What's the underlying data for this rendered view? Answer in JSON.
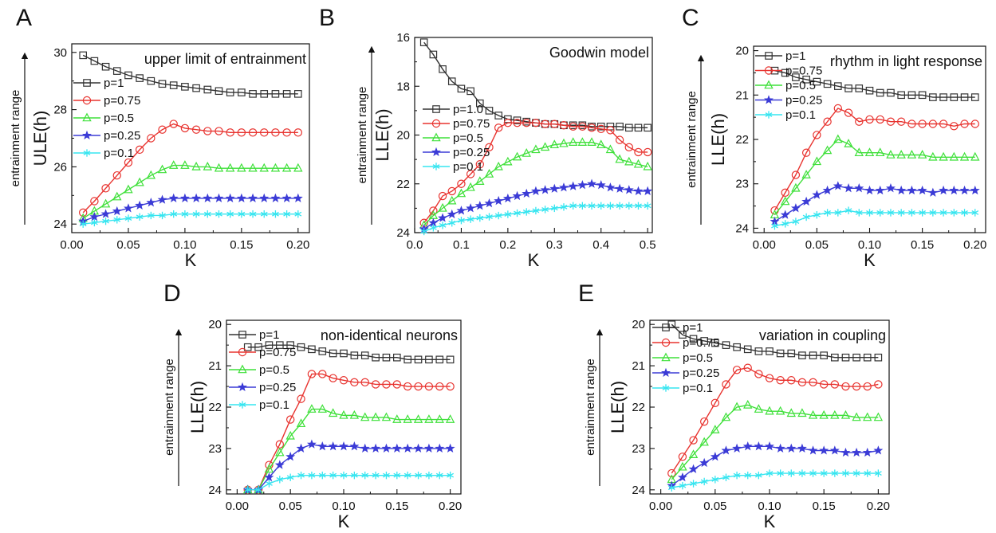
{
  "side_label": "entrainment range",
  "chart_data": [
    {
      "panel": "A",
      "type": "line",
      "title": "upper limit of entrainment",
      "xlabel": "K",
      "ylabel": "ULE(h)",
      "xlim": [
        0,
        0.21
      ],
      "ylim": [
        23.7,
        30.3
      ],
      "y_reversed": false,
      "xticks": [
        0.0,
        0.05,
        0.1,
        0.15,
        0.2
      ],
      "xtick_labels": [
        "0.00",
        "0.05",
        "0.10",
        "0.15",
        "0.20"
      ],
      "yticks": [
        24,
        26,
        28,
        30
      ],
      "ytick_labels": [
        "24",
        "26",
        "28",
        "30"
      ],
      "grid": false,
      "legend": "left",
      "x": [
        0.01,
        0.02,
        0.03,
        0.04,
        0.05,
        0.06,
        0.07,
        0.08,
        0.09,
        0.1,
        0.11,
        0.12,
        0.13,
        0.14,
        0.15,
        0.16,
        0.17,
        0.18,
        0.19,
        0.2
      ],
      "series": [
        {
          "name": "p=1",
          "color": "#333333",
          "marker": "square",
          "values": [
            29.9,
            29.7,
            29.5,
            29.35,
            29.2,
            29.1,
            29.0,
            28.9,
            28.85,
            28.8,
            28.75,
            28.7,
            28.65,
            28.6,
            28.6,
            28.55,
            28.55,
            28.55,
            28.55,
            28.55
          ]
        },
        {
          "name": "p=0.75",
          "color": "#e8332f",
          "marker": "circle",
          "values": [
            24.4,
            24.8,
            25.25,
            25.7,
            26.15,
            26.6,
            27.0,
            27.3,
            27.5,
            27.35,
            27.3,
            27.25,
            27.25,
            27.2,
            27.2,
            27.2,
            27.2,
            27.2,
            27.2,
            27.2
          ]
        },
        {
          "name": "p=0.5",
          "color": "#3fe03a",
          "marker": "triangle",
          "values": [
            24.2,
            24.45,
            24.7,
            24.95,
            25.2,
            25.45,
            25.7,
            25.9,
            26.05,
            26.05,
            26.0,
            26.0,
            25.95,
            25.95,
            25.95,
            25.95,
            25.95,
            25.95,
            25.95,
            25.95
          ]
        },
        {
          "name": "p=0.25",
          "color": "#3b3bd6",
          "marker": "star",
          "values": [
            24.1,
            24.25,
            24.35,
            24.45,
            24.55,
            24.65,
            24.75,
            24.85,
            24.9,
            24.9,
            24.9,
            24.9,
            24.9,
            24.9,
            24.9,
            24.9,
            24.9,
            24.9,
            24.9,
            24.9
          ]
        },
        {
          "name": "p=0.1",
          "color": "#36e5f0",
          "marker": "asterisk",
          "values": [
            24.0,
            24.05,
            24.1,
            24.15,
            24.2,
            24.25,
            24.3,
            24.3,
            24.35,
            24.35,
            24.35,
            24.35,
            24.35,
            24.35,
            24.35,
            24.35,
            24.35,
            24.35,
            24.35,
            24.35
          ]
        }
      ]
    },
    {
      "panel": "B",
      "type": "line",
      "title": "Goodwin model",
      "xlabel": "K",
      "ylabel": "LLE(h)",
      "xlim": [
        0,
        0.51
      ],
      "ylim": [
        24,
        16
      ],
      "y_reversed": true,
      "xticks": [
        0.0,
        0.1,
        0.2,
        0.3,
        0.4,
        0.5
      ],
      "xtick_labels": [
        "0.0",
        "0.1",
        "0.2",
        "0.3",
        "0.4",
        "0.5"
      ],
      "yticks": [
        16,
        18,
        20,
        22,
        24
      ],
      "ytick_labels": [
        "16",
        "18",
        "20",
        "22",
        "24"
      ],
      "grid": false,
      "legend": "left",
      "x": [
        0.02,
        0.04,
        0.06,
        0.08,
        0.1,
        0.12,
        0.14,
        0.16,
        0.18,
        0.2,
        0.22,
        0.24,
        0.26,
        0.28,
        0.3,
        0.32,
        0.34,
        0.36,
        0.38,
        0.4,
        0.42,
        0.44,
        0.46,
        0.48,
        0.5
      ],
      "series": [
        {
          "name": "p=1.0",
          "color": "#333333",
          "marker": "square",
          "values": [
            16.2,
            16.7,
            17.3,
            17.8,
            18.1,
            18.2,
            18.7,
            19.0,
            19.2,
            19.35,
            19.4,
            19.45,
            19.5,
            19.55,
            19.55,
            19.6,
            19.6,
            19.6,
            19.65,
            19.65,
            19.65,
            19.65,
            19.7,
            19.7,
            19.7
          ]
        },
        {
          "name": "p=0.75",
          "color": "#e8332f",
          "marker": "circle",
          "values": [
            23.6,
            23.1,
            22.5,
            22.3,
            22.0,
            21.6,
            21.2,
            20.5,
            19.7,
            19.5,
            19.5,
            19.5,
            19.5,
            19.55,
            19.55,
            19.6,
            19.65,
            19.65,
            19.7,
            19.75,
            19.8,
            20.2,
            20.5,
            20.7,
            20.7
          ]
        },
        {
          "name": "p=0.5",
          "color": "#3fe03a",
          "marker": "triangle",
          "values": [
            23.7,
            23.3,
            23.0,
            22.7,
            22.4,
            22.15,
            21.9,
            21.6,
            21.3,
            21.1,
            20.9,
            20.75,
            20.6,
            20.5,
            20.4,
            20.35,
            20.3,
            20.3,
            20.3,
            20.4,
            20.6,
            21.0,
            21.1,
            21.2,
            21.3
          ]
        },
        {
          "name": "p=0.25",
          "color": "#3b3bd6",
          "marker": "star",
          "values": [
            23.85,
            23.6,
            23.4,
            23.25,
            23.1,
            23.0,
            22.9,
            22.8,
            22.7,
            22.6,
            22.5,
            22.4,
            22.3,
            22.25,
            22.2,
            22.15,
            22.1,
            22.05,
            22.0,
            22.05,
            22.15,
            22.2,
            22.25,
            22.3,
            22.3
          ]
        },
        {
          "name": "p=0.1",
          "color": "#36e5f0",
          "marker": "asterisk",
          "values": [
            23.95,
            23.8,
            23.7,
            23.6,
            23.5,
            23.45,
            23.4,
            23.35,
            23.3,
            23.25,
            23.2,
            23.15,
            23.1,
            23.05,
            23.0,
            22.95,
            22.9,
            22.9,
            22.9,
            22.9,
            22.9,
            22.9,
            22.9,
            22.9,
            22.9
          ]
        }
      ]
    },
    {
      "panel": "C",
      "type": "line",
      "title": "rhythm in light response",
      "xlabel": "K",
      "ylabel": "LLE(h)",
      "xlim": [
        -0.01,
        0.21
      ],
      "ylim": [
        24.1,
        19.9
      ],
      "y_reversed": true,
      "xticks": [
        0.0,
        0.05,
        0.1,
        0.15,
        0.2
      ],
      "xtick_labels": [
        "0.00",
        "0.05",
        "0.10",
        "0.15",
        "0.20"
      ],
      "yticks": [
        20,
        21,
        22,
        23,
        24
      ],
      "ytick_labels": [
        "20",
        "21",
        "22",
        "23",
        "24"
      ],
      "grid": false,
      "legend": "left",
      "x": [
        0.01,
        0.02,
        0.03,
        0.04,
        0.05,
        0.06,
        0.07,
        0.08,
        0.09,
        0.1,
        0.11,
        0.12,
        0.13,
        0.14,
        0.15,
        0.16,
        0.17,
        0.18,
        0.19,
        0.2
      ],
      "series": [
        {
          "name": "p=1",
          "color": "#333333",
          "marker": "square",
          "values": [
            20.45,
            20.5,
            20.6,
            20.65,
            20.7,
            20.75,
            20.8,
            20.85,
            20.85,
            20.9,
            20.95,
            20.95,
            21.0,
            21.0,
            21.0,
            21.05,
            21.05,
            21.05,
            21.05,
            21.05
          ]
        },
        {
          "name": "p=0.75",
          "color": "#e8332f",
          "marker": "circle",
          "values": [
            23.6,
            23.2,
            22.8,
            22.3,
            21.9,
            21.6,
            21.3,
            21.4,
            21.6,
            21.55,
            21.55,
            21.6,
            21.6,
            21.65,
            21.65,
            21.65,
            21.65,
            21.7,
            21.65,
            21.65
          ]
        },
        {
          "name": "p=0.5",
          "color": "#3fe03a",
          "marker": "triangle",
          "values": [
            23.7,
            23.4,
            23.1,
            22.8,
            22.5,
            22.25,
            22.0,
            22.1,
            22.3,
            22.3,
            22.3,
            22.35,
            22.35,
            22.35,
            22.35,
            22.4,
            22.4,
            22.4,
            22.4,
            22.4
          ]
        },
        {
          "name": "p=0.25",
          "color": "#3b3bd6",
          "marker": "star",
          "values": [
            23.85,
            23.7,
            23.55,
            23.4,
            23.25,
            23.15,
            23.05,
            23.1,
            23.1,
            23.15,
            23.15,
            23.1,
            23.15,
            23.15,
            23.15,
            23.2,
            23.15,
            23.15,
            23.15,
            23.15
          ]
        },
        {
          "name": "p=0.1",
          "color": "#36e5f0",
          "marker": "asterisk",
          "values": [
            23.95,
            23.9,
            23.85,
            23.75,
            23.7,
            23.65,
            23.65,
            23.6,
            23.65,
            23.65,
            23.65,
            23.65,
            23.65,
            23.65,
            23.65,
            23.65,
            23.65,
            23.65,
            23.65,
            23.65
          ]
        }
      ]
    },
    {
      "panel": "D",
      "type": "line",
      "title": "non-identical neurons",
      "xlabel": "K",
      "ylabel": "LLE(h)",
      "xlim": [
        -0.01,
        0.21
      ],
      "ylim": [
        24.1,
        19.9
      ],
      "y_reversed": true,
      "xticks": [
        0.0,
        0.05,
        0.1,
        0.15,
        0.2
      ],
      "xtick_labels": [
        "0.00",
        "0.05",
        "0.10",
        "0.15",
        "0.20"
      ],
      "yticks": [
        20,
        21,
        22,
        23,
        24
      ],
      "ytick_labels": [
        "20",
        "21",
        "22",
        "23",
        "24"
      ],
      "grid": false,
      "legend": "left",
      "x": [
        0.01,
        0.02,
        0.03,
        0.04,
        0.05,
        0.06,
        0.07,
        0.08,
        0.09,
        0.1,
        0.11,
        0.12,
        0.13,
        0.14,
        0.15,
        0.16,
        0.17,
        0.18,
        0.19,
        0.2
      ],
      "series": [
        {
          "name": "p=1",
          "color": "#333333",
          "marker": "square",
          "values": [
            20.55,
            20.55,
            20.5,
            20.5,
            20.5,
            20.55,
            20.6,
            20.65,
            20.7,
            20.7,
            20.75,
            20.75,
            20.8,
            20.8,
            20.8,
            20.85,
            20.85,
            20.85,
            20.85,
            20.85
          ]
        },
        {
          "name": "p=0.75",
          "color": "#e8332f",
          "marker": "circle",
          "values": [
            24.0,
            24.0,
            23.4,
            22.9,
            22.3,
            21.8,
            21.2,
            21.2,
            21.3,
            21.35,
            21.4,
            21.4,
            21.45,
            21.45,
            21.45,
            21.5,
            21.5,
            21.5,
            21.5,
            21.5
          ]
        },
        {
          "name": "p=0.5",
          "color": "#3fe03a",
          "marker": "triangle",
          "values": [
            24.0,
            24.0,
            23.5,
            23.1,
            22.7,
            22.4,
            22.05,
            22.05,
            22.15,
            22.2,
            22.2,
            22.25,
            22.25,
            22.25,
            22.3,
            22.3,
            22.3,
            22.3,
            22.3,
            22.3
          ]
        },
        {
          "name": "p=0.25",
          "color": "#3b3bd6",
          "marker": "star",
          "values": [
            24.0,
            24.0,
            23.7,
            23.4,
            23.2,
            23.0,
            22.9,
            22.95,
            22.95,
            22.95,
            22.95,
            23.0,
            23.0,
            23.0,
            23.0,
            23.0,
            23.0,
            23.0,
            23.0,
            23.0
          ]
        },
        {
          "name": "p=0.1",
          "color": "#36e5f0",
          "marker": "asterisk",
          "values": [
            24.0,
            24.0,
            23.85,
            23.75,
            23.7,
            23.65,
            23.65,
            23.65,
            23.65,
            23.65,
            23.65,
            23.65,
            23.65,
            23.65,
            23.65,
            23.65,
            23.65,
            23.65,
            23.65,
            23.65
          ]
        }
      ]
    },
    {
      "panel": "E",
      "type": "line",
      "title": "variation in coupling",
      "xlabel": "K",
      "ylabel": "LLE(h)",
      "xlim": [
        -0.01,
        0.21
      ],
      "ylim": [
        24.1,
        19.9
      ],
      "y_reversed": true,
      "xticks": [
        0.0,
        0.05,
        0.1,
        0.15,
        0.2
      ],
      "xtick_labels": [
        "0.00",
        "0.05",
        "0.10",
        "0.15",
        "0.20"
      ],
      "yticks": [
        20,
        21,
        22,
        23,
        24
      ],
      "ytick_labels": [
        "20",
        "21",
        "22",
        "23",
        "24"
      ],
      "grid": false,
      "legend": "left",
      "x": [
        0.01,
        0.02,
        0.03,
        0.04,
        0.05,
        0.06,
        0.07,
        0.08,
        0.09,
        0.1,
        0.11,
        0.12,
        0.13,
        0.14,
        0.15,
        0.16,
        0.17,
        0.18,
        0.19,
        0.2
      ],
      "series": [
        {
          "name": "p=1",
          "color": "#333333",
          "marker": "square",
          "values": [
            20.0,
            20.25,
            20.35,
            20.4,
            20.45,
            20.5,
            20.55,
            20.6,
            20.65,
            20.65,
            20.7,
            20.7,
            20.75,
            20.75,
            20.75,
            20.8,
            20.8,
            20.8,
            20.8,
            20.8
          ]
        },
        {
          "name": "p=0.75",
          "color": "#e8332f",
          "marker": "circle",
          "values": [
            23.6,
            23.2,
            22.8,
            22.35,
            21.9,
            21.45,
            21.1,
            21.05,
            21.2,
            21.3,
            21.35,
            21.35,
            21.4,
            21.4,
            21.45,
            21.45,
            21.5,
            21.5,
            21.5,
            21.45
          ]
        },
        {
          "name": "p=0.5",
          "color": "#3fe03a",
          "marker": "triangle",
          "values": [
            23.75,
            23.45,
            23.15,
            22.85,
            22.55,
            22.25,
            22.0,
            21.95,
            22.05,
            22.1,
            22.1,
            22.15,
            22.15,
            22.2,
            22.2,
            22.2,
            22.2,
            22.25,
            22.25,
            22.25
          ]
        },
        {
          "name": "p=0.25",
          "color": "#3b3bd6",
          "marker": "star",
          "values": [
            23.9,
            23.7,
            23.5,
            23.35,
            23.2,
            23.05,
            23.0,
            22.95,
            22.95,
            22.95,
            23.0,
            23.0,
            23.0,
            23.05,
            23.05,
            23.05,
            23.1,
            23.1,
            23.1,
            23.05
          ]
        },
        {
          "name": "p=0.1",
          "color": "#36e5f0",
          "marker": "asterisk",
          "values": [
            23.95,
            23.9,
            23.85,
            23.8,
            23.75,
            23.7,
            23.65,
            23.65,
            23.65,
            23.6,
            23.6,
            23.6,
            23.6,
            23.6,
            23.6,
            23.6,
            23.6,
            23.6,
            23.6,
            23.6
          ]
        }
      ]
    }
  ]
}
